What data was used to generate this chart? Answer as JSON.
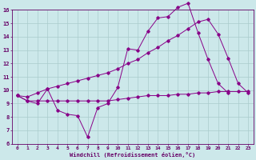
{
  "xlabel": "Windchill (Refroidissement éolien,°C)",
  "bg_color": "#cce8ea",
  "line_color": "#880088",
  "grid_color": "#aacccc",
  "text_color": "#660066",
  "xlim_min": -0.5,
  "xlim_max": 23.5,
  "ylim_min": 6,
  "ylim_max": 16,
  "yticks": [
    6,
    7,
    8,
    9,
    10,
    11,
    12,
    13,
    14,
    15,
    16
  ],
  "xticks": [
    0,
    1,
    2,
    3,
    4,
    5,
    6,
    7,
    8,
    9,
    10,
    11,
    12,
    13,
    14,
    15,
    16,
    17,
    18,
    19,
    20,
    21,
    22,
    23
  ],
  "line1_x": [
    0,
    1,
    2,
    3,
    4,
    5,
    6,
    7,
    8,
    9,
    10,
    11,
    12,
    13,
    14,
    15,
    16,
    17,
    18,
    19,
    20,
    21
  ],
  "line1_y": [
    9.6,
    9.2,
    9.0,
    10.1,
    8.5,
    8.2,
    8.1,
    6.5,
    8.7,
    9.0,
    10.2,
    13.1,
    13.0,
    14.4,
    15.4,
    15.5,
    16.2,
    16.5,
    14.3,
    12.3,
    10.5,
    9.8
  ],
  "line2_x": [
    0,
    1,
    2,
    3,
    4,
    5,
    6,
    7,
    8,
    9,
    10,
    11,
    12,
    13,
    14,
    15,
    16,
    17,
    18,
    19,
    20,
    21,
    22,
    23
  ],
  "line2_y": [
    9.6,
    9.2,
    9.2,
    9.2,
    9.2,
    9.2,
    9.2,
    9.2,
    9.2,
    9.2,
    9.3,
    9.4,
    9.5,
    9.6,
    9.6,
    9.6,
    9.7,
    9.7,
    9.8,
    9.8,
    9.9,
    9.9,
    9.9,
    9.9
  ],
  "line3_x": [
    0,
    1,
    2,
    3,
    4,
    5,
    6,
    7,
    8,
    9,
    10,
    11,
    12,
    13,
    14,
    15,
    16,
    17,
    18,
    19,
    20,
    21,
    22,
    23
  ],
  "line3_y": [
    9.6,
    9.5,
    9.8,
    10.1,
    10.3,
    10.5,
    10.7,
    10.9,
    11.1,
    11.3,
    11.6,
    12.0,
    12.3,
    12.8,
    13.2,
    13.7,
    14.1,
    14.6,
    15.1,
    15.3,
    14.2,
    12.4,
    10.5,
    9.8
  ]
}
